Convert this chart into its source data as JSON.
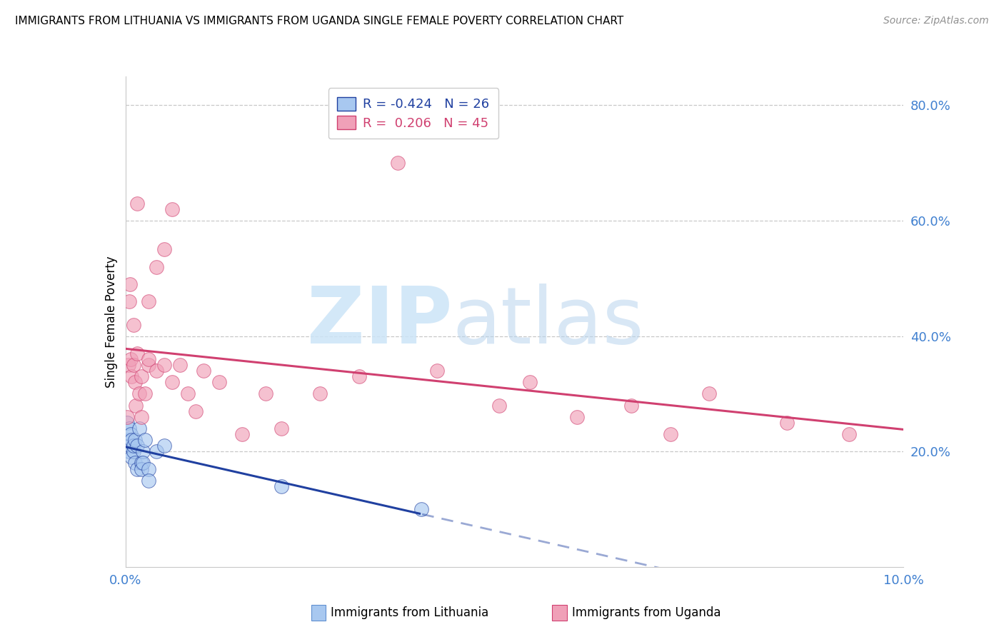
{
  "title": "IMMIGRANTS FROM LITHUANIA VS IMMIGRANTS FROM UGANDA SINGLE FEMALE POVERTY CORRELATION CHART",
  "source": "Source: ZipAtlas.com",
  "ylabel": "Single Female Poverty",
  "xlim": [
    0.0,
    0.1
  ],
  "ylim": [
    0.0,
    0.85
  ],
  "color_lithuania": "#a8c8f0",
  "color_uganda": "#f0a0b8",
  "color_line_lithuania": "#2040a0",
  "color_line_uganda": "#d04070",
  "watermark_zip": "ZIP",
  "watermark_atlas": "atlas",
  "legend_entries": [
    {
      "label": "R = -0.424   N = 26",
      "color": "#a8c8f0",
      "edge": "#2040a0"
    },
    {
      "label": "R =  0.206   N = 45",
      "color": "#f0a0b8",
      "edge": "#d04070"
    }
  ],
  "bottom_legend": [
    {
      "label": "Immigrants from Lithuania",
      "color": "#a8c8f0",
      "edge": "#6090d0"
    },
    {
      "label": "Immigrants from Uganda",
      "color": "#f0a0b8",
      "edge": "#d04070"
    }
  ],
  "lithuania_x": [
    0.0002,
    0.0003,
    0.0005,
    0.0005,
    0.0006,
    0.0007,
    0.0008,
    0.0008,
    0.001,
    0.001,
    0.0012,
    0.0012,
    0.0015,
    0.0015,
    0.0018,
    0.002,
    0.002,
    0.0022,
    0.0022,
    0.0025,
    0.003,
    0.003,
    0.004,
    0.005,
    0.02,
    0.038
  ],
  "lithuania_y": [
    0.25,
    0.22,
    0.24,
    0.2,
    0.21,
    0.23,
    0.19,
    0.22,
    0.2,
    0.21,
    0.22,
    0.18,
    0.21,
    0.17,
    0.24,
    0.18,
    0.17,
    0.2,
    0.18,
    0.22,
    0.17,
    0.15,
    0.2,
    0.21,
    0.14,
    0.1
  ],
  "uganda_x": [
    0.0002,
    0.0004,
    0.0005,
    0.0006,
    0.0007,
    0.0008,
    0.001,
    0.001,
    0.0012,
    0.0013,
    0.0015,
    0.0015,
    0.0018,
    0.002,
    0.002,
    0.0025,
    0.003,
    0.003,
    0.003,
    0.004,
    0.004,
    0.005,
    0.005,
    0.006,
    0.006,
    0.007,
    0.008,
    0.009,
    0.01,
    0.012,
    0.015,
    0.018,
    0.02,
    0.025,
    0.03,
    0.035,
    0.04,
    0.048,
    0.052,
    0.058,
    0.065,
    0.07,
    0.075,
    0.085,
    0.093
  ],
  "uganda_y": [
    0.26,
    0.35,
    0.46,
    0.49,
    0.36,
    0.33,
    0.42,
    0.35,
    0.32,
    0.28,
    0.63,
    0.37,
    0.3,
    0.26,
    0.33,
    0.3,
    0.35,
    0.46,
    0.36,
    0.52,
    0.34,
    0.55,
    0.35,
    0.62,
    0.32,
    0.35,
    0.3,
    0.27,
    0.34,
    0.32,
    0.23,
    0.3,
    0.24,
    0.3,
    0.33,
    0.7,
    0.34,
    0.28,
    0.32,
    0.26,
    0.28,
    0.23,
    0.3,
    0.25,
    0.23
  ]
}
